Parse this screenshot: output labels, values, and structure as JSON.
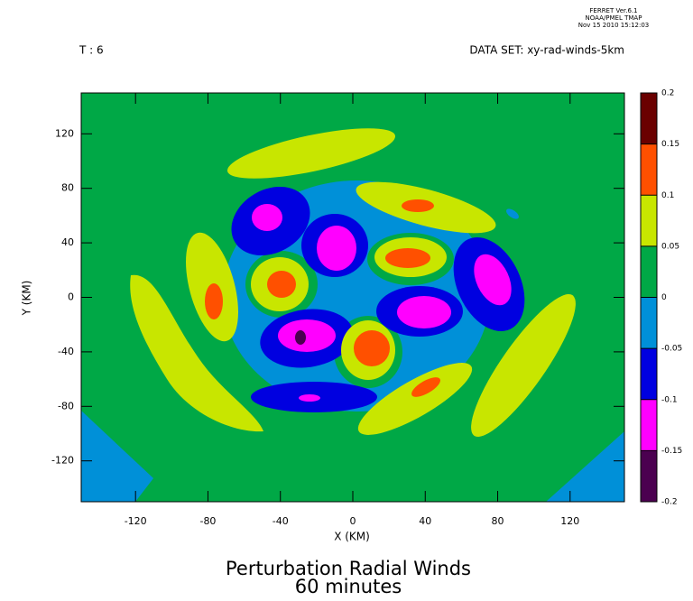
{
  "chart_data": {
    "type": "contour",
    "title": "Perturbation Radial Winds",
    "subtitle": "60 minutes",
    "annotations": [
      "FERRET Ver.6.1",
      "NOAA/PMEL TMAP",
      "Nov 15 2010 15:12:03",
      "T : 6",
      "DATA SET: xy-rad-winds-5km"
    ],
    "x_label": "X (KM)",
    "y_label": "Y (KM)",
    "xlim": [
      -150,
      150
    ],
    "ylim": [
      -150,
      150
    ],
    "xticks": [
      -120,
      -80,
      -40,
      0,
      40,
      80,
      120
    ],
    "yticks": [
      -120,
      -80,
      -40,
      0,
      40,
      80,
      120
    ],
    "levels": [
      -0.2,
      -0.15,
      -0.1,
      -0.05,
      0,
      0.05,
      0.1,
      0.15,
      0.2
    ],
    "colors": [
      "#4b0050",
      "#ff00ff",
      "#0000e0",
      "#0090d8",
      "#00a846",
      "#c8e600",
      "#ff5000",
      "#6a0000"
    ]
  }
}
